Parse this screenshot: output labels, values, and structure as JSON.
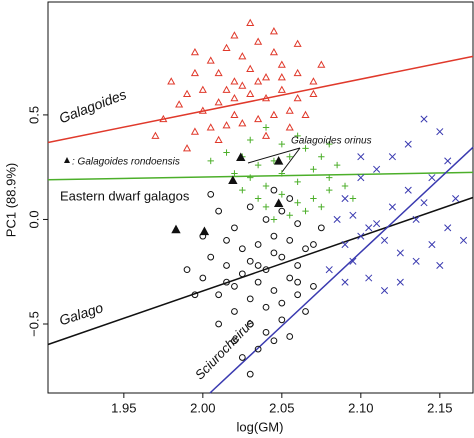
{
  "chart_data": {
    "type": "scatter",
    "x_label": "log(GM)",
    "y_label": "PC1 (88.9%)",
    "xlim": [
      1.902,
      2.171
    ],
    "ylim": [
      -0.83,
      1.04
    ],
    "xticks": [
      1.95,
      {
        "value": 2,
        "label": "2.00"
      },
      2.05,
      {
        "value": 2.1,
        "label": "2.10"
      },
      2.15
    ],
    "yticks": [
      {
        "value": -0.5,
        "label": "−0.5"
      },
      {
        "value": 0,
        "label": "0.0"
      },
      0.5
    ],
    "series": [
      {
        "marker": "triangle",
        "color": "#e0392b",
        "x": [
          2.0,
          2.01,
          2.02,
          2.03,
          2.04,
          2.05,
          2.06,
          2.07,
          2.045,
          2.035,
          2.025,
          2.015,
          2.005,
          1.995,
          1.99,
          2.0,
          2.01,
          2.02,
          2.03,
          2.04,
          2.05,
          2.06,
          2.055,
          2.045,
          2.035,
          2.025,
          2.015,
          2.005,
          1.995,
          1.985,
          1.98,
          2.02,
          2.03,
          2.045,
          2.06,
          2.075,
          2.07,
          1.975,
          1.97,
          2.01,
          1.99,
          2.04,
          2.055,
          2.065,
          2.025,
          2.035,
          2.015,
          2.05,
          1.995,
          2.02
        ],
        "values": [
          0.62,
          0.7,
          0.66,
          0.72,
          0.68,
          0.74,
          0.7,
          0.66,
          0.8,
          0.85,
          0.78,
          0.82,
          0.76,
          0.7,
          0.6,
          0.52,
          0.56,
          0.58,
          0.6,
          0.58,
          0.62,
          0.58,
          0.52,
          0.5,
          0.48,
          0.46,
          0.45,
          0.44,
          0.42,
          0.55,
          0.66,
          0.88,
          0.94,
          0.9,
          0.84,
          0.74,
          0.6,
          0.48,
          0.4,
          0.38,
          0.34,
          0.4,
          0.44,
          0.5,
          0.64,
          0.66,
          0.62,
          0.68,
          0.8,
          0.5
        ]
      },
      {
        "marker": "plus",
        "color": "#4caf2a",
        "x": [
          2.03,
          2.04,
          2.05,
          2.06,
          2.07,
          2.08,
          2.045,
          2.055,
          2.035,
          2.025,
          2.015,
          2.005,
          2.065,
          2.075,
          2.085,
          2.05,
          2.06,
          2.04,
          2.07,
          2.08,
          2.035,
          2.025,
          2.055,
          2.045,
          2.065,
          2.075,
          2.06,
          2.05,
          2.04,
          2.09,
          2.03,
          2.02,
          2.08,
          2.095
        ],
        "values": [
          0.2,
          0.16,
          0.22,
          0.18,
          0.24,
          0.2,
          0.28,
          0.3,
          0.26,
          0.3,
          0.32,
          0.28,
          0.34,
          0.3,
          0.26,
          0.12,
          0.08,
          0.06,
          0.1,
          0.14,
          0.1,
          0.14,
          0.02,
          0.0,
          0.04,
          0.06,
          0.4,
          0.36,
          0.44,
          0.16,
          0.38,
          0.22,
          0.36,
          0.1
        ]
      },
      {
        "marker": "cross",
        "color": "#3a3ab0",
        "x": [
          2.14,
          2.15,
          2.13,
          2.12,
          2.11,
          2.1,
          2.09,
          2.095,
          2.105,
          2.115,
          2.125,
          2.135,
          2.145,
          2.155,
          2.14,
          2.13,
          2.12,
          2.11,
          2.1,
          2.09,
          2.095,
          2.105,
          2.115,
          2.125,
          2.135,
          2.145,
          2.155,
          2.16,
          2.165,
          2.09,
          2.08,
          2.085,
          2.15,
          2.1
        ],
        "values": [
          0.48,
          0.42,
          0.36,
          0.3,
          0.24,
          0.2,
          0.1,
          0.02,
          -0.04,
          -0.1,
          -0.16,
          -0.2,
          -0.12,
          -0.04,
          0.08,
          0.14,
          0.06,
          -0.02,
          -0.08,
          -0.12,
          -0.2,
          -0.28,
          -0.34,
          -0.3,
          0.0,
          0.2,
          0.28,
          0.1,
          -0.1,
          -0.3,
          -0.24,
          0.0,
          -0.22,
          0.3
        ]
      },
      {
        "marker": "circle",
        "color": "#111111",
        "x": [
          2.03,
          2.04,
          2.05,
          2.06,
          2.035,
          2.045,
          2.055,
          2.025,
          2.015,
          2.02,
          2.03,
          2.04,
          2.05,
          2.06,
          2.065,
          2.055,
          2.045,
          2.035,
          2.025,
          2.015,
          2.005,
          2.0,
          2.01,
          2.02,
          2.03,
          2.04,
          2.05,
          2.06,
          2.07,
          2.075,
          2.06,
          2.05,
          2.04,
          2.03,
          2.02,
          2.01,
          2.0,
          1.995,
          1.99,
          2.01,
          2.02,
          2.025,
          2.035,
          2.03,
          2.045,
          2.055,
          2.065,
          2.07,
          2.005,
          2.045,
          2.055,
          2.015,
          2.035,
          2.045
        ],
        "values": [
          -0.2,
          -0.24,
          -0.18,
          -0.22,
          -0.3,
          -0.34,
          -0.28,
          -0.26,
          -0.22,
          -0.32,
          -0.38,
          -0.42,
          -0.4,
          -0.36,
          -0.14,
          -0.1,
          -0.08,
          -0.12,
          -0.14,
          -0.1,
          -0.18,
          -0.28,
          -0.36,
          -0.44,
          -0.5,
          -0.54,
          -0.48,
          -0.3,
          -0.12,
          -0.04,
          -0.02,
          0.04,
          0.0,
          0.06,
          -0.04,
          0.04,
          -0.08,
          -0.36,
          -0.24,
          -0.5,
          -0.58,
          -0.66,
          -0.62,
          -0.74,
          -0.58,
          -0.56,
          -0.44,
          -0.32,
          0.12,
          0.14,
          0.1,
          -0.3,
          -0.22,
          -0.16
        ]
      },
      {
        "marker": "filled-triangle",
        "color": "#111111",
        "x": [
          2.024,
          2.048,
          2.048,
          1.983,
          2.001,
          2.019
        ],
        "values": [
          0.297,
          0.28,
          0.077,
          -0.048,
          -0.057,
          0.187
        ]
      }
    ],
    "lines": [
      {
        "color": "#e0392b",
        "x": [
          1.902,
          2.171
        ],
        "y": [
          0.368,
          0.78
        ]
      },
      {
        "color": "#4caf2a",
        "x": [
          1.902,
          2.171
        ],
        "y": [
          0.19,
          0.225
        ]
      },
      {
        "color": "#111111",
        "x": [
          1.902,
          2.171
        ],
        "y": [
          -0.598,
          0.105
        ]
      },
      {
        "color": "#3a3ab0",
        "x": [
          2.0045,
          2.171
        ],
        "y": [
          -0.83,
          0.345
        ]
      }
    ],
    "annotations": [
      "Galagoides",
      "Eastern dwarf galagos",
      "Galago",
      "Sciurocheirus",
      "Galagoides orinus",
      ": Galagoides rondoensis"
    ]
  }
}
